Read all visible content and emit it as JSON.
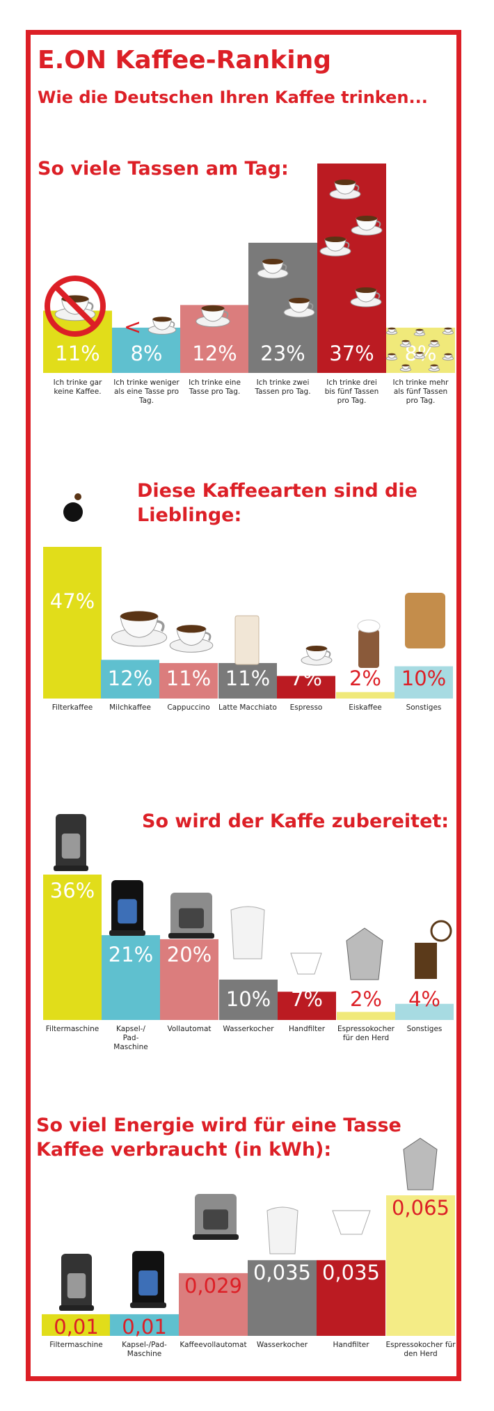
{
  "title": "E.ON Kaffee-Ranking",
  "subtitle": "Wie die Deutschen Ihren Kaffee trinken...",
  "sections": {
    "cups_title": "So viele Tassen am Tag:",
    "types_title_1": "Diese Kaffeearten sind die",
    "types_title_2": "Lieblinge:",
    "prep_title": "So wird der Kaffe zubereitet:",
    "energy_title_1": "So viel Energie wird für eine Tasse",
    "energy_title_2": "Kaffee verbraucht (in kWh):"
  },
  "colors": {
    "brand_red": "#dc1f26",
    "yellow": "#e1dd1a",
    "light_yellow": "#f0e97a",
    "cyan": "#5fc0cf",
    "salmon": "#db7d7d",
    "gray": "#7a7a7a",
    "dark_red": "#bb1b22",
    "light_blue": "#a7dbe2",
    "pale_yellow": "#f4ec86",
    "white_label": "#ffffff"
  },
  "chart_data": [
    {
      "type": "bar",
      "title": "So viele Tassen am Tag:",
      "categories": [
        "Ich trinke gar keine Kaffee.",
        "Ich trinke weniger als eine Tasse pro Tag.",
        "Ich trinke eine Tasse pro Tag.",
        "Ich trinke zwei Tassen pro Tag.",
        "Ich trinke drei bis fünf Tassen pro Tag.",
        "Ich trinke mehr als fünf Tassen pro Tag."
      ],
      "values": [
        11,
        8,
        12,
        23,
        37,
        8
      ],
      "labels": [
        "11%",
        "8%",
        "12%",
        "23%",
        "37%",
        "8%"
      ],
      "icon_extras": [
        "",
        "<",
        "",
        "",
        "",
        ""
      ]
    },
    {
      "type": "bar",
      "title": "Diese Kaffeearten sind die Lieblinge:",
      "categories": [
        "Filterkaffee",
        "Milchkaffee",
        "Cappuccino",
        "Latte Macchiato",
        "Espresso",
        "Eiskaffee",
        "Sonstiges"
      ],
      "values": [
        47,
        12,
        11,
        11,
        7,
        2,
        10
      ],
      "labels": [
        "47%",
        "12%",
        "11%",
        "11%",
        "7%",
        "2%",
        "10%"
      ]
    },
    {
      "type": "bar",
      "title": "So wird der Kaffe zubereitet:",
      "categories": [
        "Filtermaschine",
        "Kapsel-/ Pad- Maschine",
        "Vollautomat",
        "Wasserkocher",
        "Handfilter",
        "Espressokocher für den Herd",
        "Sonstiges"
      ],
      "values": [
        36,
        21,
        20,
        10,
        7,
        2,
        4
      ],
      "labels": [
        "36%",
        "21%",
        "20%",
        "10%",
        "7%",
        "2%",
        "4%"
      ]
    },
    {
      "type": "bar",
      "title": "So viel Energie wird für eine Tasse Kaffee verbraucht (in kWh):",
      "categories": [
        "Filtermaschine",
        "Kapsel-/Pad- Maschine",
        "Kaffeevollautomat",
        "Wasserkocher",
        "Handfilter",
        "Espressokocher für den Herd"
      ],
      "values": [
        0.01,
        0.01,
        0.029,
        0.035,
        0.035,
        0.065
      ],
      "labels": [
        "0,01",
        "0,01",
        "0,029",
        "0,035",
        "0,035",
        "0,065"
      ]
    }
  ]
}
